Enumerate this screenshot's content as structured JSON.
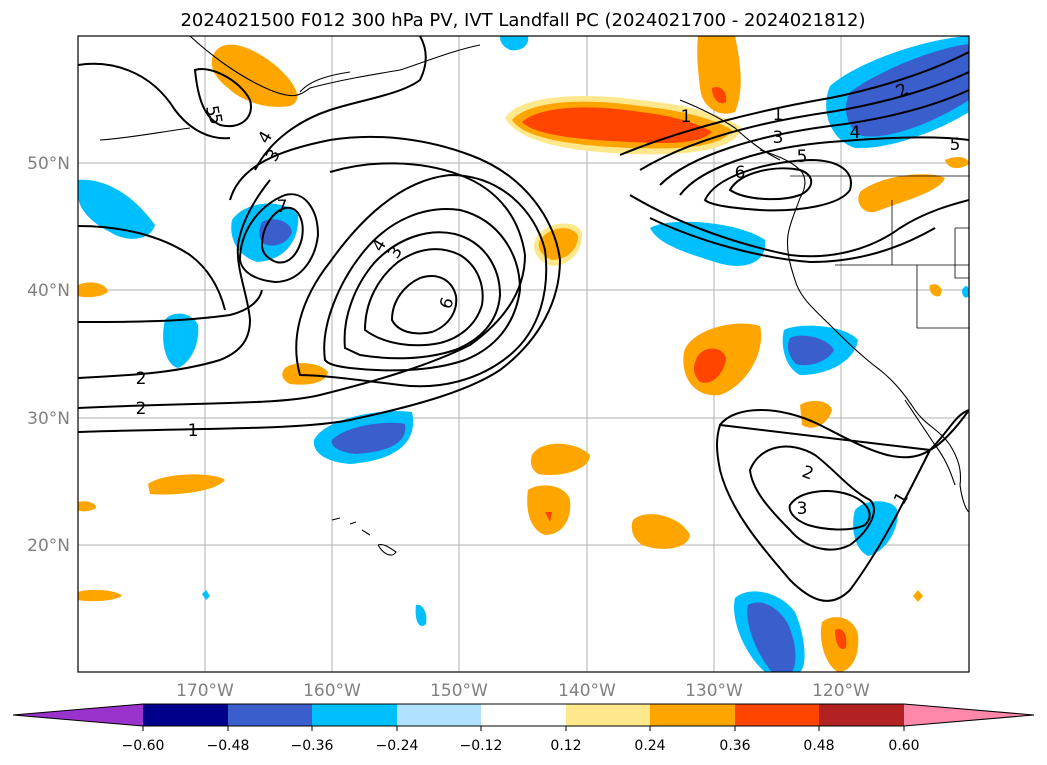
{
  "title": "2024021500 F012 300 hPa PV, IVT Landfall PC (2024021700 - 2024021812)",
  "axes": {
    "lat_ticks": [
      "50°N",
      "40°N",
      "30°N",
      "20°N"
    ],
    "lon_ticks": [
      "170°W",
      "160°W",
      "150°W",
      "140°W",
      "130°W",
      "120°W"
    ]
  },
  "colorbar": {
    "tick_labels": [
      "−0.60",
      "−0.48",
      "−0.36",
      "−0.24",
      "−0.12",
      "0.12",
      "0.24",
      "0.36",
      "0.48",
      "0.60"
    ],
    "colors": [
      "#9933cc",
      "#00008b",
      "#3a5fcd",
      "#00bfff",
      "#b0e2ff",
      "#ffffff",
      "#ffe78c",
      "#ffa500",
      "#ff4500",
      "#b22222",
      "#ff88aa"
    ]
  },
  "contour_labels": [
    "1",
    "1",
    "2",
    "2",
    "3",
    "4",
    "5",
    "3",
    "4",
    "5",
    "6",
    "7",
    "1",
    "2",
    "3",
    "4",
    "5",
    "6",
    "1",
    "2",
    "3",
    "5"
  ]
}
